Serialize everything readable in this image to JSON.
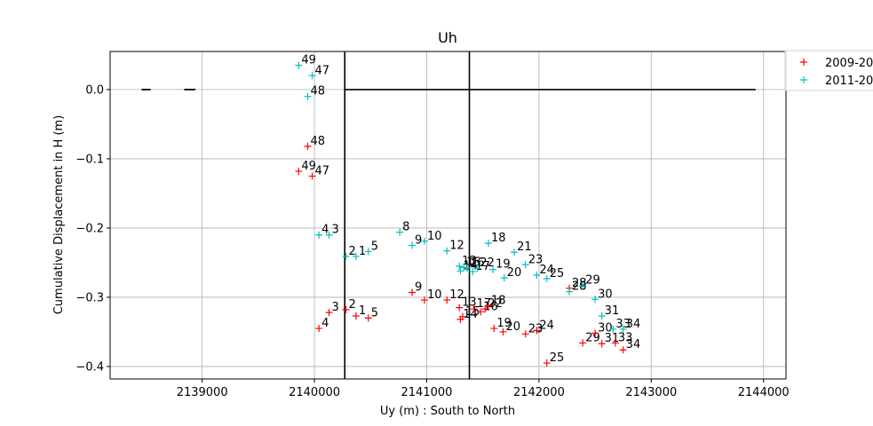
{
  "chart_data": {
    "type": "scatter",
    "title": "Uh",
    "xlabel": "Uy (m) : South to North",
    "ylabel": "Cumulative Displacement in H (m)",
    "xlim": [
      2138180,
      2144200
    ],
    "ylim": [
      -0.418,
      0.055
    ],
    "xticks": [
      2139000,
      2140000,
      2141000,
      2142000,
      2143000,
      2144000
    ],
    "xtick_labels": [
      "2139000",
      "2140000",
      "2141000",
      "2142000",
      "2143000",
      "2144000"
    ],
    "yticks": [
      0.0,
      -0.1,
      -0.2,
      -0.3,
      -0.4
    ],
    "ytick_labels": [
      "0.0",
      "−0.1",
      "−0.2",
      "−0.3",
      "−0.4"
    ],
    "grid": true,
    "legend_position": "top-right",
    "marker": "+",
    "vertical_lines_x": [
      2140270,
      2141380
    ],
    "horizontal_line": {
      "y": 0.0,
      "x_from": 2140270,
      "x_to": 2143930
    },
    "dashes": [
      [
        2138460,
        2138540
      ],
      [
        2138840,
        2138940
      ]
    ],
    "series": [
      {
        "name": "2009-20",
        "color": "#ff0000",
        "points": [
          {
            "label": "49",
            "x": 2139860,
            "y": -0.118
          },
          {
            "label": "47",
            "x": 2139980,
            "y": -0.125
          },
          {
            "label": "48",
            "x": 2139940,
            "y": -0.082
          },
          {
            "label": "3",
            "x": 2140130,
            "y": -0.322
          },
          {
            "label": "4",
            "x": 2140040,
            "y": -0.345
          },
          {
            "label": "2",
            "x": 2140280,
            "y": -0.318
          },
          {
            "label": "1",
            "x": 2140370,
            "y": -0.327
          },
          {
            "label": "5",
            "x": 2140480,
            "y": -0.33
          },
          {
            "label": "9",
            "x": 2140870,
            "y": -0.293
          },
          {
            "label": "10",
            "x": 2140980,
            "y": -0.304
          },
          {
            "label": "12",
            "x": 2141180,
            "y": -0.304
          },
          {
            "label": "13",
            "x": 2141290,
            "y": -0.315
          },
          {
            "label": "14",
            "x": 2141300,
            "y": -0.332
          },
          {
            "label": "15",
            "x": 2141320,
            "y": -0.328
          },
          {
            "label": "17",
            "x": 2141420,
            "y": -0.317
          },
          {
            "label": "16",
            "x": 2141480,
            "y": -0.321
          },
          {
            "label": "22",
            "x": 2141520,
            "y": -0.317
          },
          {
            "label": "18",
            "x": 2141550,
            "y": -0.312
          },
          {
            "label": "19",
            "x": 2141600,
            "y": -0.345
          },
          {
            "label": "20",
            "x": 2141680,
            "y": -0.35
          },
          {
            "label": "23",
            "x": 2141880,
            "y": -0.353
          },
          {
            "label": "24",
            "x": 2141980,
            "y": -0.348
          },
          {
            "label": "25",
            "x": 2142070,
            "y": -0.395
          },
          {
            "label": "28",
            "x": 2142270,
            "y": -0.287
          },
          {
            "label": "29",
            "x": 2142390,
            "y": -0.366
          },
          {
            "label": "30",
            "x": 2142500,
            "y": -0.352
          },
          {
            "label": "31",
            "x": 2142560,
            "y": -0.367
          },
          {
            "label": "33",
            "x": 2142680,
            "y": -0.366
          },
          {
            "label": "34",
            "x": 2142750,
            "y": -0.376
          }
        ]
      },
      {
        "name": "2011-20",
        "color": "#00bfbf",
        "points": [
          {
            "label": "49",
            "x": 2139860,
            "y": 0.035
          },
          {
            "label": "47",
            "x": 2139980,
            "y": 0.02
          },
          {
            "label": "48",
            "x": 2139940,
            "y": -0.01
          },
          {
            "label": "4",
            "x": 2140040,
            "y": -0.21
          },
          {
            "label": "3",
            "x": 2140130,
            "y": -0.21
          },
          {
            "label": "2",
            "x": 2140280,
            "y": -0.241
          },
          {
            "label": "1",
            "x": 2140370,
            "y": -0.241
          },
          {
            "label": "5",
            "x": 2140480,
            "y": -0.234
          },
          {
            "label": "8",
            "x": 2140760,
            "y": -0.206
          },
          {
            "label": "9",
            "x": 2140870,
            "y": -0.225
          },
          {
            "label": "10",
            "x": 2140980,
            "y": -0.219
          },
          {
            "label": "12",
            "x": 2141180,
            "y": -0.233
          },
          {
            "label": "13",
            "x": 2141290,
            "y": -0.255
          },
          {
            "label": "14",
            "x": 2141300,
            "y": -0.262
          },
          {
            "label": "15",
            "x": 2141330,
            "y": -0.257
          },
          {
            "label": "16",
            "x": 2141360,
            "y": -0.258
          },
          {
            "label": "17",
            "x": 2141410,
            "y": -0.263
          },
          {
            "label": "22",
            "x": 2141450,
            "y": -0.258
          },
          {
            "label": "18",
            "x": 2141550,
            "y": -0.222
          },
          {
            "label": "19",
            "x": 2141590,
            "y": -0.26
          },
          {
            "label": "20",
            "x": 2141690,
            "y": -0.272
          },
          {
            "label": "21",
            "x": 2141780,
            "y": -0.235
          },
          {
            "label": "23",
            "x": 2141880,
            "y": -0.253
          },
          {
            "label": "24",
            "x": 2141980,
            "y": -0.268
          },
          {
            "label": "25",
            "x": 2142070,
            "y": -0.273
          },
          {
            "label": "28",
            "x": 2142270,
            "y": -0.292
          },
          {
            "label": "29",
            "x": 2142390,
            "y": -0.283
          },
          {
            "label": "30",
            "x": 2142500,
            "y": -0.303
          },
          {
            "label": "31",
            "x": 2142560,
            "y": -0.327
          },
          {
            "label": "33",
            "x": 2142660,
            "y": -0.346
          },
          {
            "label": "34",
            "x": 2142750,
            "y": -0.346
          }
        ]
      }
    ]
  }
}
